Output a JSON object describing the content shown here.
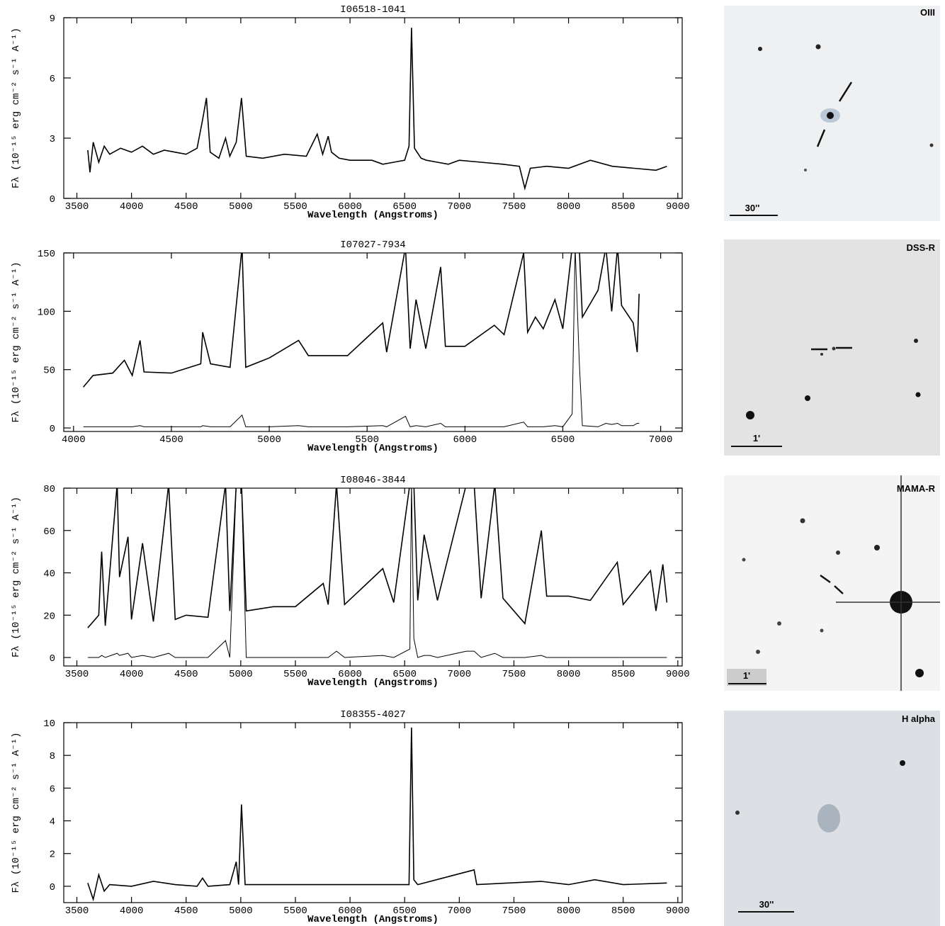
{
  "chart_data": [
    {
      "type": "line",
      "title": "I06518-1041",
      "x_label": "Wavelength (Angstroms)",
      "y_label": "Fλ (10⁻¹⁵ erg cm⁻² s⁻¹ A⁻¹)",
      "x": [
        3600,
        3620,
        3650,
        3700,
        3750,
        3800,
        3900,
        4000,
        4100,
        4200,
        4300,
        4400,
        4500,
        4600,
        4650,
        4686,
        4720,
        4800,
        4861,
        4900,
        4959,
        5007,
        5050,
        5200,
        5400,
        5600,
        5700,
        5750,
        5800,
        5830,
        5900,
        6000,
        6200,
        6300,
        6400,
        6500,
        6540,
        6563,
        6590,
        6650,
        6700,
        6800,
        6900,
        7000,
        7200,
        7400,
        7550,
        7600,
        7650,
        7800,
        8000,
        8200,
        8400,
        8600,
        8800,
        8900
      ],
      "series": [
        {
          "color": "#000000",
          "values": [
            2.4,
            1.3,
            2.8,
            1.8,
            2.6,
            2.2,
            2.5,
            2.3,
            2.6,
            2.2,
            2.4,
            2.3,
            2.2,
            2.5,
            3.9,
            5.0,
            2.3,
            2.0,
            3.0,
            2.1,
            2.8,
            5.0,
            2.1,
            2.0,
            2.2,
            2.1,
            3.2,
            2.2,
            3.1,
            2.3,
            2.0,
            1.9,
            1.9,
            1.7,
            1.8,
            1.9,
            2.6,
            8.5,
            2.5,
            2.0,
            1.9,
            1.8,
            1.7,
            1.9,
            1.8,
            1.7,
            1.6,
            0.5,
            1.5,
            1.6,
            1.5,
            1.9,
            1.6,
            1.5,
            1.4,
            1.6
          ]
        }
      ],
      "xlim": [
        3380,
        9040
      ],
      "xticks": [
        3500,
        4000,
        4500,
        5000,
        5500,
        6000,
        6500,
        7000,
        7500,
        8000,
        8500,
        9000
      ],
      "ylim": [
        0,
        9
      ],
      "yticks": [
        0,
        3,
        6,
        9
      ]
    },
    {
      "type": "line",
      "title": "I07027-7934",
      "x_label": "Wavelength (Angstroms)",
      "y_label": "Fλ (10⁻¹⁵ erg cm⁻² s⁻¹ A⁻¹)",
      "x": [
        4050,
        4100,
        4200,
        4260,
        4300,
        4340,
        4360,
        4500,
        4650,
        4660,
        4700,
        4800,
        4861,
        4880,
        5000,
        5150,
        5200,
        5400,
        5580,
        5600,
        5696,
        5720,
        5750,
        5800,
        5876,
        5900,
        6000,
        6150,
        6200,
        6300,
        6320,
        6360,
        6400,
        6460,
        6500,
        6548,
        6563,
        6584,
        6600,
        6680,
        6720,
        6750,
        6780,
        6800,
        6860,
        6880,
        6890
      ],
      "series": [
        {
          "color": "#000000",
          "values": [
            35,
            45,
            47,
            58,
            45,
            75,
            48,
            47,
            55,
            82,
            55,
            52,
            155,
            52,
            60,
            75,
            62,
            62,
            90,
            65,
            155,
            68,
            110,
            68,
            138,
            70,
            70,
            88,
            80,
            150,
            82,
            95,
            85,
            110,
            85,
            155,
            155,
            155,
            95,
            118,
            155,
            100,
            155,
            105,
            90,
            65,
            115
          ]
        },
        {
          "color": "#000000",
          "values": [
            1,
            1,
            1,
            1,
            1,
            2,
            1,
            1,
            1,
            2,
            1,
            1,
            11,
            1,
            1,
            2,
            1,
            1,
            2,
            1,
            10,
            1,
            2,
            1,
            4,
            1,
            1,
            1,
            1,
            5,
            1,
            1,
            1,
            2,
            1,
            12,
            155,
            57,
            2,
            1,
            4,
            3,
            4,
            2,
            2,
            4,
            4
          ]
        }
      ],
      "xlim": [
        3950,
        7110
      ],
      "xticks": [
        4000,
        4500,
        5000,
        5500,
        6000,
        6500,
        7000
      ],
      "ylim": [
        -3,
        150
      ],
      "yticks": [
        0,
        50,
        100,
        150
      ]
    },
    {
      "type": "line",
      "title": "I08046-3844",
      "x_label": "Wavelength (Angstroms)",
      "y_label": "Fλ (10⁻¹⁵ erg cm⁻² s⁻¹ A⁻¹)",
      "x": [
        3600,
        3700,
        3727,
        3760,
        3869,
        3890,
        3968,
        4000,
        4101,
        4200,
        4340,
        4400,
        4500,
        4700,
        4861,
        4900,
        4959,
        5007,
        5050,
        5300,
        5500,
        5755,
        5800,
        5876,
        5950,
        6300,
        6400,
        6548,
        6563,
        6584,
        6620,
        6678,
        6730,
        6800,
        7065,
        7136,
        7200,
        7325,
        7400,
        7600,
        7751,
        7800,
        8000,
        8200,
        8446,
        8500,
        8750,
        8800,
        8863,
        8900
      ],
      "series": [
        {
          "color": "#000000",
          "values": [
            14,
            20,
            50,
            15,
            82,
            38,
            57,
            18,
            54,
            17,
            82,
            18,
            20,
            19,
            82,
            22,
            82,
            82,
            22,
            24,
            24,
            35,
            25,
            82,
            25,
            42,
            26,
            82,
            82,
            82,
            27,
            58,
            45,
            27,
            82,
            82,
            28,
            82,
            28,
            16,
            60,
            29,
            29,
            27,
            45,
            25,
            41,
            22,
            44,
            26
          ]
        },
        {
          "color": "#000000",
          "values": [
            0,
            0,
            1,
            0,
            2,
            1,
            2,
            0,
            1,
            0,
            2,
            0,
            0,
            0,
            8,
            0,
            82,
            82,
            0,
            0,
            0,
            0,
            0,
            3,
            0,
            1,
            0,
            4,
            82,
            9,
            0,
            1,
            1,
            0,
            3,
            3,
            0,
            2,
            0,
            0,
            1,
            0,
            0,
            0,
            0,
            0,
            0,
            0,
            0,
            0
          ]
        }
      ],
      "xlim": [
        3380,
        9040
      ],
      "xticks": [
        3500,
        4000,
        4500,
        5000,
        5500,
        6000,
        6500,
        7000,
        7500,
        8000,
        8500,
        9000
      ],
      "ylim": [
        -4,
        80
      ],
      "yticks": [
        0,
        20,
        40,
        60,
        80
      ]
    },
    {
      "type": "line",
      "title": "I08355-4027",
      "x_label": "Wavelength (Angstroms)",
      "y_label": "Fλ (10⁻¹⁵ erg cm⁻² s⁻¹ A⁻¹)",
      "x": [
        3600,
        3650,
        3700,
        3750,
        3800,
        4000,
        4200,
        4400,
        4600,
        4650,
        4700,
        4900,
        4959,
        4980,
        5007,
        5040,
        5500,
        6000,
        6540,
        6563,
        6584,
        6620,
        7136,
        7160,
        7750,
        8000,
        8240,
        8500,
        8900
      ],
      "series": [
        {
          "color": "#000000",
          "values": [
            0.2,
            -0.8,
            0.7,
            -0.3,
            0.1,
            0.0,
            0.3,
            0.1,
            0.0,
            0.5,
            0.0,
            0.1,
            1.5,
            0.1,
            5.0,
            0.1,
            0.1,
            0.1,
            0.1,
            9.7,
            0.4,
            0.1,
            1.0,
            0.1,
            0.3,
            0.1,
            0.4,
            0.1,
            0.2
          ]
        }
      ],
      "xlim": [
        3380,
        9040
      ],
      "xticks": [
        3500,
        4000,
        4500,
        5000,
        5500,
        6000,
        6500,
        7000,
        7500,
        8000,
        8500,
        9000
      ],
      "ylim": [
        -1,
        10
      ],
      "yticks": [
        0,
        2,
        4,
        6,
        8,
        10
      ]
    }
  ],
  "images": [
    {
      "label": "OIII",
      "scale": "30''"
    },
    {
      "label": "DSS-R",
      "scale": "1'"
    },
    {
      "label": "MAMA-R",
      "scale": "1'"
    },
    {
      "label": "H alpha",
      "scale": "30''"
    }
  ]
}
